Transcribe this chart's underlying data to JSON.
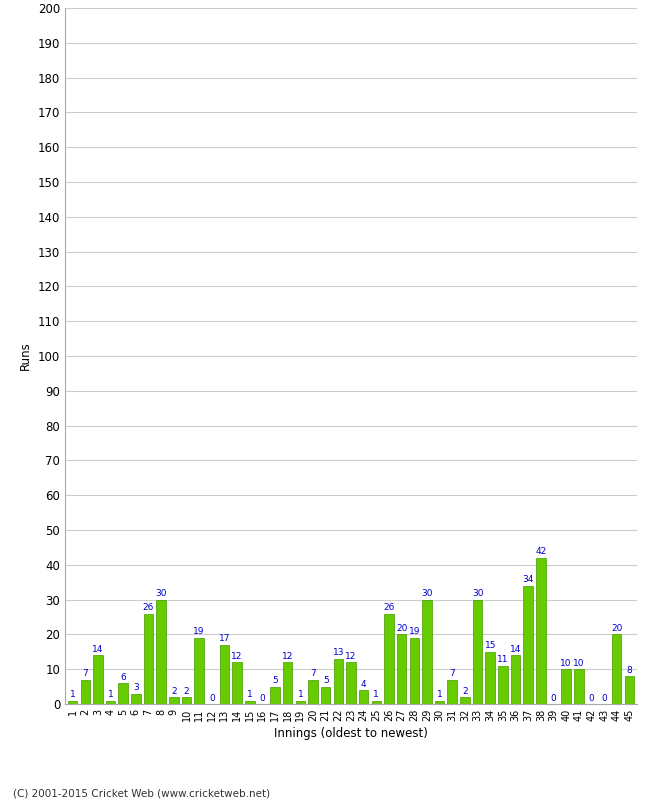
{
  "xlabel": "Innings (oldest to newest)",
  "ylabel": "Runs",
  "values": [
    1,
    7,
    14,
    1,
    6,
    3,
    26,
    30,
    2,
    2,
    19,
    0,
    17,
    12,
    1,
    0,
    5,
    12,
    1,
    7,
    5,
    13,
    12,
    4,
    1,
    26,
    20,
    19,
    30,
    1,
    7,
    2,
    30,
    15,
    11,
    14,
    34,
    42,
    0,
    10,
    10,
    0,
    0,
    20,
    8
  ],
  "labels": [
    "1",
    "2",
    "3",
    "4",
    "5",
    "6",
    "7",
    "8",
    "9",
    "10",
    "11",
    "12",
    "13",
    "14",
    "15",
    "16",
    "17",
    "18",
    "19",
    "20",
    "21",
    "22",
    "23",
    "24",
    "25",
    "26",
    "27",
    "28",
    "29",
    "30",
    "31",
    "32",
    "33",
    "34",
    "35",
    "36",
    "37",
    "38",
    "39",
    "40",
    "41",
    "42",
    "43",
    "44",
    "45"
  ],
  "bar_color": "#66cc00",
  "bar_edge_color": "#449900",
  "label_color": "#0000cc",
  "background_color": "#ffffff",
  "grid_color": "#cccccc",
  "ylim": [
    0,
    200
  ],
  "yticks": [
    0,
    10,
    20,
    30,
    40,
    50,
    60,
    70,
    80,
    90,
    100,
    110,
    120,
    130,
    140,
    150,
    160,
    170,
    180,
    190,
    200
  ],
  "footer": "(C) 2001-2015 Cricket Web (www.cricketweb.net)"
}
